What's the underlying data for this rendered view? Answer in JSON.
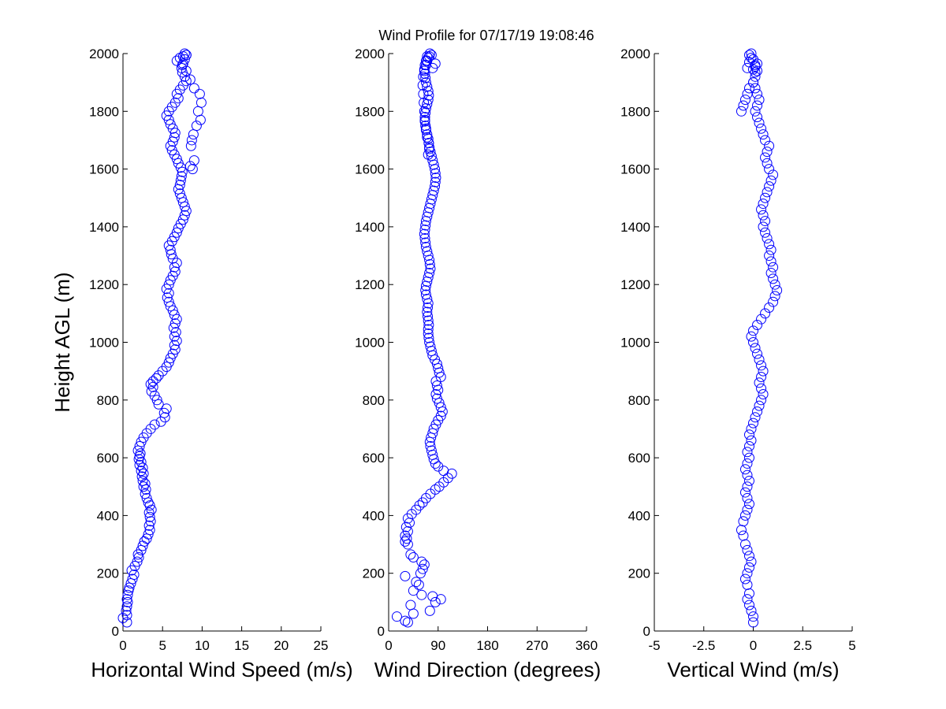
{
  "title": "Wind Profile for  07/17/19 19:08:46",
  "marker_color": "#0000ff",
  "chart_data": [
    {
      "type": "scatter",
      "title": "",
      "xlabel": "Horizontal Wind Speed (m/s)",
      "ylabel": "Height AGL (m)",
      "xlim": [
        0,
        25
      ],
      "ylim": [
        0,
        2000
      ],
      "xticks": [
        "0",
        "5",
        "10",
        "15",
        "20",
        "25"
      ],
      "yticks": [
        "0",
        "200",
        "400",
        "600",
        "800",
        "1000",
        "1200",
        "1400",
        "1600",
        "1800",
        "2000"
      ],
      "series": [
        {
          "x": [
            0.0,
            0.5,
            0.5,
            0.4,
            0.5,
            0.6,
            0.5,
            0.6,
            0.7,
            0.8,
            1.0,
            1.2,
            1.4,
            1.1,
            1.5,
            1.8,
            2.0,
            1.9,
            2.3,
            2.5,
            2.7,
            3.0,
            3.2,
            3.4,
            3.3,
            3.5,
            3.4,
            3.3,
            3.6,
            3.4,
            3.2,
            3.0,
            2.8,
            2.9,
            2.6,
            2.8,
            2.5,
            2.4,
            2.6,
            2.3,
            2.5,
            2.1,
            2.3,
            2.0,
            2.1,
            2.2,
            1.9,
            2.1,
            2.3,
            2.6,
            3.0,
            3.5,
            4.0,
            4.8,
            5.3,
            5.2,
            5.5,
            4.5,
            4.3,
            4.0,
            3.6,
            3.8,
            3.5,
            3.8,
            4.2,
            4.5,
            5.0,
            5.5,
            5.8,
            6.0,
            6.3,
            6.6,
            6.5,
            6.8,
            6.5,
            6.7,
            6.4,
            6.6,
            6.8,
            6.5,
            6.3,
            6.0,
            5.8,
            5.6,
            5.8,
            5.5,
            5.8,
            6.0,
            6.3,
            6.6,
            6.5,
            6.8,
            6.3,
            6.1,
            6.0,
            5.8,
            6.2,
            6.5,
            6.8,
            7.0,
            7.3,
            7.6,
            7.8,
            8.0,
            7.8,
            7.6,
            7.4,
            7.2,
            7.0,
            7.2,
            7.3,
            7.4,
            7.5,
            7.3,
            7.0,
            6.8,
            6.5,
            6.2,
            6.0,
            6.3,
            6.5,
            6.6,
            6.3,
            6.0,
            5.8,
            5.5,
            5.8,
            6.2,
            6.6,
            7.0,
            6.8,
            7.2,
            7.6,
            8.0,
            7.8,
            7.5,
            7.4,
            7.6,
            7.8,
            8.0,
            8.5,
            9.0,
            8.8,
            8.6,
            8.7,
            8.9,
            9.3,
            9.8,
            9.5,
            9.9,
            9.7,
            9.0,
            8.5,
            8.0,
            7.5,
            6.8,
            7.2,
            7.6,
            8.0,
            7.8
          ],
          "y": [
            45,
            30,
            55,
            70,
            85,
            100,
            110,
            125,
            140,
            150,
            165,
            180,
            195,
            210,
            225,
            240,
            255,
            265,
            280,
            295,
            310,
            320,
            335,
            350,
            365,
            380,
            395,
            410,
            420,
            435,
            445,
            460,
            475,
            490,
            500,
            510,
            520,
            535,
            545,
            555,
            565,
            575,
            585,
            595,
            605,
            615,
            625,
            640,
            655,
            670,
            685,
            700,
            715,
            725,
            740,
            755,
            770,
            785,
            800,
            815,
            830,
            845,
            855,
            865,
            875,
            885,
            900,
            915,
            930,
            945,
            960,
            975,
            990,
            1005,
            1020,
            1035,
            1050,
            1065,
            1080,
            1095,
            1110,
            1125,
            1140,
            1155,
            1170,
            1185,
            1200,
            1215,
            1230,
            1245,
            1260,
            1275,
            1290,
            1305,
            1320,
            1335,
            1350,
            1365,
            1380,
            1395,
            1410,
            1425,
            1440,
            1455,
            1470,
            1485,
            1500,
            1515,
            1530,
            1545,
            1560,
            1575,
            1590,
            1605,
            1620,
            1635,
            1650,
            1665,
            1680,
            1695,
            1710,
            1725,
            1740,
            1755,
            1770,
            1785,
            1800,
            1815,
            1830,
            1845,
            1860,
            1875,
            1890,
            1905,
            1920,
            1935,
            1950,
            1965,
            1980,
            1995,
            1610,
            1630,
            1600,
            1680,
            1700,
            1720,
            1750,
            1770,
            1800,
            1830,
            1860,
            1880,
            1910,
            1940,
            1960,
            1975,
            1985,
            1990,
            1995,
            2000
          ]
        }
      ]
    },
    {
      "type": "scatter",
      "title": "",
      "xlabel": "Wind Direction (degrees)",
      "ylabel": "",
      "xlim": [
        0,
        360
      ],
      "ylim": [
        0,
        2000
      ],
      "xticks": [
        "0",
        "90",
        "180",
        "270",
        "360"
      ],
      "yticks": [
        "0",
        "200",
        "400",
        "600",
        "800",
        "1000",
        "1200",
        "1400",
        "1600",
        "1800",
        "2000"
      ],
      "series": [
        {
          "x": [
            15,
            35,
            30,
            45,
            40,
            85,
            75,
            95,
            45,
            60,
            30,
            80,
            55,
            50,
            65,
            62,
            58,
            45,
            60,
            40,
            35,
            30,
            33,
            30,
            35,
            32,
            38,
            35,
            42,
            50,
            56,
            62,
            68,
            76,
            85,
            92,
            100,
            108,
            115,
            100,
            90,
            85,
            82,
            80,
            78,
            76,
            75,
            77,
            80,
            82,
            86,
            90,
            95,
            98,
            95,
            92,
            88,
            86,
            90,
            88,
            86,
            95,
            92,
            90,
            88,
            84,
            80,
            78,
            76,
            74,
            73,
            72,
            72,
            73,
            72,
            71,
            70,
            71,
            72,
            70,
            68,
            67,
            68,
            70,
            72,
            74,
            76,
            75,
            74,
            72,
            70,
            68,
            67,
            66,
            65,
            66,
            67,
            68,
            70,
            72,
            74,
            76,
            78,
            80,
            82,
            84,
            85,
            86,
            85,
            84,
            82,
            80,
            78,
            76,
            74,
            73,
            72,
            70,
            68,
            67,
            66,
            66,
            67,
            68,
            70,
            72,
            73,
            72,
            70,
            68,
            67,
            66,
            65,
            66,
            68,
            70,
            72,
            74,
            73,
            70,
            68,
            66,
            65,
            64,
            63,
            62,
            63,
            65,
            68,
            70,
            72,
            74,
            78,
            80,
            85,
            75
          ],
          "y": [
            50,
            30,
            35,
            60,
            90,
            100,
            70,
            110,
            140,
            125,
            190,
            120,
            160,
            170,
            230,
            215,
            200,
            255,
            240,
            265,
            300,
            310,
            320,
            330,
            345,
            360,
            375,
            390,
            405,
            420,
            435,
            445,
            460,
            475,
            490,
            500,
            515,
            530,
            545,
            555,
            570,
            580,
            595,
            610,
            625,
            640,
            655,
            670,
            685,
            700,
            715,
            730,
            745,
            760,
            775,
            790,
            805,
            820,
            835,
            850,
            865,
            880,
            895,
            910,
            925,
            940,
            955,
            970,
            985,
            1000,
            1015,
            1030,
            1045,
            1060,
            1075,
            1090,
            1105,
            1120,
            1135,
            1150,
            1165,
            1180,
            1195,
            1210,
            1225,
            1240,
            1255,
            1270,
            1285,
            1300,
            1315,
            1330,
            1345,
            1360,
            1375,
            1390,
            1405,
            1420,
            1435,
            1450,
            1465,
            1480,
            1495,
            1510,
            1525,
            1540,
            1555,
            1570,
            1585,
            1600,
            1615,
            1630,
            1645,
            1660,
            1675,
            1690,
            1705,
            1720,
            1735,
            1750,
            1765,
            1780,
            1795,
            1810,
            1825,
            1840,
            1855,
            1870,
            1885,
            1900,
            1915,
            1930,
            1945,
            1960,
            1975,
            1990,
            1650,
            1670,
            1690,
            1710,
            1740,
            1770,
            1800,
            1830,
            1860,
            1890,
            1920,
            1940,
            1960,
            1975,
            1985,
            1990,
            1995,
            1950,
            1965,
            2000
          ]
        }
      ]
    },
    {
      "type": "scatter",
      "title": "",
      "xlabel": "Vertical Wind (m/s)",
      "ylabel": "",
      "xlim": [
        -5,
        5
      ],
      "ylim": [
        0,
        2000
      ],
      "xticks": [
        "-5",
        "-2.5",
        "0",
        "2.5",
        "5"
      ],
      "yticks": [
        "0",
        "200",
        "400",
        "600",
        "800",
        "1000",
        "1200",
        "1400",
        "1600",
        "1800",
        "2000"
      ],
      "series": [
        {
          "x": [
            0.0,
            0.0,
            -0.1,
            -0.2,
            -0.3,
            -0.2,
            -0.3,
            -0.4,
            -0.3,
            -0.2,
            -0.1,
            -0.2,
            -0.3,
            -0.4,
            -0.5,
            -0.6,
            -0.5,
            -0.4,
            -0.3,
            -0.2,
            -0.3,
            -0.4,
            -0.3,
            -0.2,
            -0.3,
            -0.4,
            -0.3,
            -0.2,
            -0.3,
            -0.2,
            -0.1,
            -0.2,
            -0.1,
            0.0,
            0.1,
            0.2,
            0.3,
            0.4,
            0.5,
            0.4,
            0.3,
            0.4,
            0.5,
            0.4,
            0.3,
            0.2,
            0.1,
            0.0,
            -0.1,
            0.0,
            0.2,
            0.4,
            0.6,
            0.8,
            1.0,
            1.1,
            1.2,
            1.1,
            1.0,
            0.9,
            1.0,
            0.9,
            0.8,
            0.9,
            0.8,
            0.7,
            0.6,
            0.5,
            0.6,
            0.5,
            0.4,
            0.5,
            0.6,
            0.7,
            0.8,
            0.9,
            1.0,
            0.8,
            0.7,
            0.6,
            0.7,
            0.8,
            0.6,
            0.5,
            0.4,
            0.3,
            0.2,
            0.1,
            0.2,
            0.3,
            0.2,
            0.1,
            0.0,
            0.1,
            0.2,
            0.1,
            0.0,
            -0.1,
            -0.2,
            -0.3,
            -0.2,
            -0.1,
            0.0,
            0.1,
            0.2,
            0.1,
            0.0,
            -0.2,
            -0.3,
            -0.4,
            -0.5,
            -0.6
          ],
          "y": [
            30,
            50,
            70,
            90,
            110,
            130,
            160,
            180,
            200,
            220,
            240,
            260,
            280,
            300,
            330,
            350,
            380,
            400,
            420,
            440,
            460,
            480,
            500,
            520,
            540,
            560,
            580,
            600,
            620,
            640,
            660,
            680,
            700,
            720,
            740,
            760,
            780,
            800,
            820,
            840,
            860,
            880,
            900,
            920,
            940,
            960,
            980,
            1000,
            1020,
            1040,
            1060,
            1080,
            1100,
            1120,
            1140,
            1160,
            1180,
            1200,
            1220,
            1240,
            1260,
            1280,
            1300,
            1320,
            1340,
            1360,
            1380,
            1400,
            1420,
            1440,
            1460,
            1480,
            1500,
            1520,
            1540,
            1560,
            1580,
            1600,
            1620,
            1640,
            1660,
            1680,
            1700,
            1720,
            1740,
            1760,
            1780,
            1800,
            1820,
            1840,
            1860,
            1880,
            1900,
            1920,
            1940,
            1960,
            1980,
            2000,
            1970,
            1950,
            1995,
            1985,
            1945,
            1935,
            1965,
            1955,
            1900,
            1880,
            1860,
            1840,
            1820,
            1800
          ]
        }
      ]
    }
  ]
}
